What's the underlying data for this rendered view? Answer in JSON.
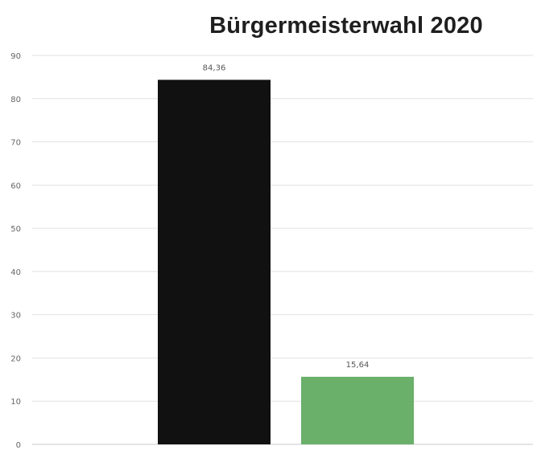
{
  "chart_data": {
    "type": "bar",
    "title": "Bürgermeisterwahl 2020",
    "xlabel": "",
    "ylabel": "",
    "categories": [
      "",
      ""
    ],
    "values": [
      84.36,
      15.64
    ],
    "data_labels": [
      "84,36",
      "15,64"
    ],
    "colors": [
      "#111111",
      "#6aaf6a"
    ],
    "ylim": [
      0,
      90
    ],
    "yticks": [
      0,
      10,
      20,
      30,
      40,
      50,
      60,
      70,
      80,
      90
    ],
    "grid": true,
    "legend": "none"
  }
}
